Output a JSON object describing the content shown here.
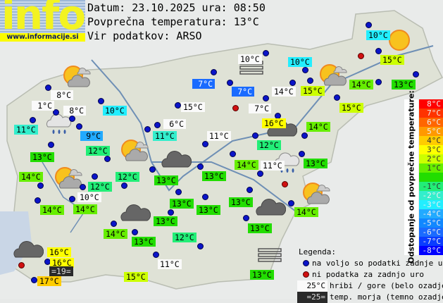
{
  "header": {
    "logo_text": "info",
    "logo_url": "www.informacije.si",
    "date_line": "Datum: 23.10.2025 ura: 08:50",
    "avg_line": "Povprečna temperatura: 13°C",
    "source_line": "Vir podatkov: ARSO"
  },
  "average_temperature": 13,
  "stations": [
    {
      "temp": "10°C",
      "kind": "valley"
    },
    {
      "temp": "15°C",
      "kind": "valley"
    },
    {
      "temp": "10°C",
      "kind": "mountain"
    },
    {
      "temp": "10°C",
      "kind": "valley"
    },
    {
      "temp": "7°C",
      "kind": "valley"
    },
    {
      "temp": "7°C",
      "kind": "valley"
    },
    {
      "temp": "14°C",
      "kind": "mountain"
    },
    {
      "temp": "15°C",
      "kind": "valley"
    },
    {
      "temp": "14°C",
      "kind": "valley"
    },
    {
      "temp": "13°C",
      "kind": "valley"
    },
    {
      "temp": "8°C",
      "kind": "mountain"
    },
    {
      "temp": "1°C",
      "kind": "mountain"
    },
    {
      "temp": "8°C",
      "kind": "mountain"
    },
    {
      "temp": "10°C",
      "kind": "valley"
    },
    {
      "temp": "15°C",
      "kind": "mountain"
    },
    {
      "temp": "7°C",
      "kind": "mountain"
    },
    {
      "temp": "15°C",
      "kind": "valley"
    },
    {
      "temp": "11°C",
      "kind": "valley"
    },
    {
      "temp": "6°C",
      "kind": "mountain"
    },
    {
      "temp": "16°C",
      "kind": "valley"
    },
    {
      "temp": "14°C",
      "kind": "valley"
    },
    {
      "temp": "9°C",
      "kind": "valley"
    },
    {
      "temp": "11°C",
      "kind": "valley"
    },
    {
      "temp": "11°C",
      "kind": "mountain"
    },
    {
      "temp": "12°C",
      "kind": "valley"
    },
    {
      "temp": "12°C",
      "kind": "valley"
    },
    {
      "temp": "13°C",
      "kind": "valley"
    },
    {
      "temp": "13°C",
      "kind": "valley"
    },
    {
      "temp": "13°C",
      "kind": "valley"
    },
    {
      "temp": "14°C",
      "kind": "valley"
    },
    {
      "temp": "11°C",
      "kind": "mountain"
    },
    {
      "temp": "13°C",
      "kind": "valley"
    },
    {
      "temp": "14°C",
      "kind": "valley"
    },
    {
      "temp": "12°C",
      "kind": "valley"
    },
    {
      "temp": "12°C",
      "kind": "valley"
    },
    {
      "temp": "10°C",
      "kind": "mountain"
    },
    {
      "temp": "14°C",
      "kind": "valley"
    },
    {
      "temp": "14°C",
      "kind": "valley"
    },
    {
      "temp": "13°C",
      "kind": "valley"
    },
    {
      "temp": "13°C",
      "kind": "valley"
    },
    {
      "temp": "13°C",
      "kind": "valley"
    },
    {
      "temp": "14°C",
      "kind": "valley"
    },
    {
      "temp": "13°C",
      "kind": "valley"
    },
    {
      "temp": "13°C",
      "kind": "valley"
    },
    {
      "temp": "14°C",
      "kind": "valley"
    },
    {
      "temp": "13°C",
      "kind": "valley"
    },
    {
      "temp": "12°C",
      "kind": "valley"
    },
    {
      "temp": "16°C",
      "kind": "valley"
    },
    {
      "temp": "16°C",
      "kind": "valley"
    },
    {
      "temp": "=19=",
      "kind": "sea"
    },
    {
      "temp": "17°C",
      "kind": "valley"
    },
    {
      "temp": "15°C",
      "kind": "valley"
    },
    {
      "temp": "11°C",
      "kind": "mountain"
    },
    {
      "temp": "13°C",
      "kind": "valley"
    }
  ],
  "dot_status": [
    "ok",
    "ok",
    "missing",
    "ok",
    "ok",
    "ok",
    "ok",
    "ok",
    "ok",
    "ok",
    "ok",
    "ok",
    "missing",
    "ok",
    "ok",
    "ok",
    "ok",
    "ok",
    "ok",
    "ok",
    "ok",
    "ok",
    "ok",
    "ok",
    "ok",
    "ok",
    "ok",
    "ok",
    "ok",
    "ok",
    "ok",
    "ok",
    "ok",
    "ok",
    "missing",
    "ok",
    "ok",
    "ok",
    "ok",
    "ok",
    "ok",
    "ok",
    "ok",
    "ok",
    "ok",
    "ok",
    "ok",
    "ok",
    "ok",
    "ok",
    "missing",
    "ok",
    "ok",
    "ok"
  ],
  "weather_icons": [
    "sun-cloud-icon",
    "sun-cloud-icon",
    "sun-cloud-icon",
    "sun-cloud-icon",
    "sun-cloud-icon",
    "sun-icon",
    "dark-cloud-icon",
    "dark-cloud-icon",
    "dark-cloud-icon",
    "dark-cloud-icon",
    "dark-cloud-icon",
    "cloud-rain-icon",
    "cloud-rain-icon",
    "fog-icon",
    "fog-icon"
  ],
  "colorbar": {
    "title": "Odstopanje od povprečne temperature:",
    "steps": [
      {
        "label": "8°C",
        "color": "#ff0000"
      },
      {
        "label": "7°C",
        "color": "#ff3300"
      },
      {
        "label": "6°C",
        "color": "#ff6600"
      },
      {
        "label": "5°C",
        "color": "#ff9900"
      },
      {
        "label": "4°C",
        "color": "#ffcc00"
      },
      {
        "label": "3°C",
        "color": "#ffff00"
      },
      {
        "label": "2°C",
        "color": "#ccff00"
      },
      {
        "label": "1°C",
        "color": "#66ee00"
      },
      {
        "label": "",
        "color": "#22dd00"
      },
      {
        "label": "-1°C",
        "color": "#22ee77"
      },
      {
        "label": "-2°C",
        "color": "#33eecc"
      },
      {
        "label": "-3°C",
        "color": "#22eeff"
      },
      {
        "label": "-4°C",
        "color": "#22aaff"
      },
      {
        "label": "-5°C",
        "color": "#1188ff"
      },
      {
        "label": "-6°C",
        "color": "#1a6bff"
      },
      {
        "label": "-7°C",
        "color": "#0a3cff"
      },
      {
        "label": "-8°C",
        "color": "#0000ff"
      }
    ]
  },
  "legend": {
    "title": "Legenda:",
    "available": "na voljo so podatki zadnje ure",
    "missing": "ni podatka za zadnjo uro",
    "mountain_sample": "25°C",
    "mountain_text": "hribi / gore (belo ozadje)",
    "sea_sample": "=25=",
    "sea_text": "temp. morja (temno ozadje)"
  }
}
